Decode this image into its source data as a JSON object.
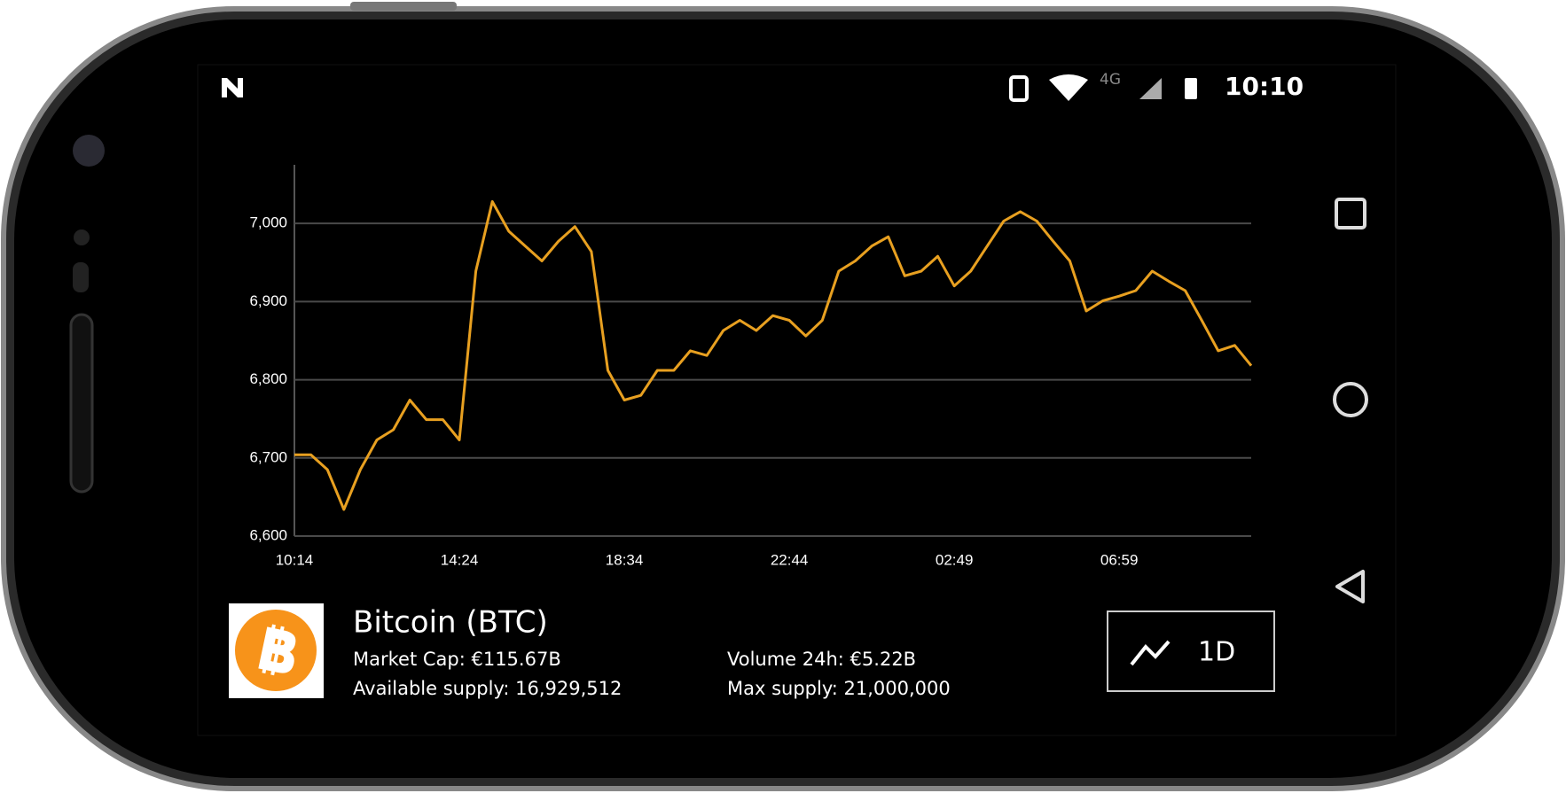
{
  "status_bar": {
    "network": "4G",
    "time": "10:10"
  },
  "chart_data": {
    "type": "line",
    "color": "#e8a020",
    "values": [
      6704,
      6704,
      6685,
      6634,
      6685,
      6723,
      6736,
      6774,
      6749,
      6749,
      6723,
      6939,
      7028,
      6990,
      6971,
      6952,
      6977,
      6996,
      6964,
      6812,
      6774,
      6780,
      6812,
      6812,
      6837,
      6831,
      6863,
      6876,
      6863,
      6882,
      6876,
      6856,
      6876,
      6939,
      6952,
      6971,
      6983,
      6933,
      6939,
      6958,
      6920,
      6939,
      6971,
      7003,
      7015,
      7003,
      6977,
      6952,
      6888,
      6901,
      6907,
      6914,
      6939,
      6926,
      6914,
      6876,
      6837,
      6844,
      6818
    ],
    "xlim": [
      0,
      58
    ],
    "xticks": [
      {
        "value": 0,
        "label": "10:14"
      },
      {
        "value": 10,
        "label": "14:24"
      },
      {
        "value": 20,
        "label": "18:34"
      },
      {
        "value": 30,
        "label": "22:44"
      },
      {
        "value": 40,
        "label": "02:49"
      },
      {
        "value": 50,
        "label": "06:59"
      }
    ],
    "ylim": [
      6600,
      7075
    ],
    "yticks": [
      {
        "value": 6600,
        "label": "6,600"
      },
      {
        "value": 6700,
        "label": "6,700"
      },
      {
        "value": 6800,
        "label": "6,800"
      },
      {
        "value": 6900,
        "label": "6,900"
      },
      {
        "value": 7000,
        "label": "7,000"
      }
    ],
    "grid": true
  },
  "coin": {
    "name": "Bitcoin (BTC)",
    "market_cap": "Market Cap: €115.67B",
    "available_supply": "Available supply: 16,929,512",
    "volume": "Volume 24h: €5.22B",
    "max_supply": "Max supply: 21,000,000"
  },
  "range_button": "1D"
}
